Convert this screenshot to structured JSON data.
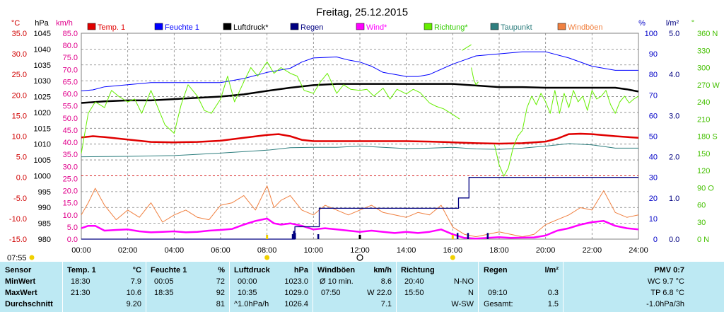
{
  "chart_data": {
    "type": "line",
    "title": "Freitag, 25.12.2015",
    "x_range": [
      "00:00",
      "24:00"
    ],
    "x_ticks": [
      "00:00",
      "02:00",
      "04:00",
      "06:00",
      "08:00",
      "10:00",
      "12:00",
      "14:00",
      "16:00",
      "18:00",
      "20:00",
      "22:00",
      "24:00"
    ],
    "start_label": "07:55",
    "axes": {
      "temp": {
        "unit": "°C",
        "range": [
          -15,
          35
        ],
        "ticks": [
          "35.0",
          "30.0",
          "25.0",
          "20.0",
          "15.0",
          "10.0",
          "5.0",
          "0.0",
          "-5.0",
          "-10.0",
          "-15.0"
        ],
        "color": "#d00000"
      },
      "pressure": {
        "unit": "hPa",
        "range": [
          980,
          1045
        ],
        "ticks": [
          "1045",
          "1040",
          "1035",
          "1030",
          "1025",
          "1020",
          "1015",
          "1010",
          "1005",
          "1000",
          "995",
          "990",
          "985",
          "980"
        ],
        "color": "#000000"
      },
      "wind": {
        "unit": "km/h",
        "range": [
          0,
          85
        ],
        "ticks": [
          "85.0",
          "80.0",
          "75.0",
          "70.0",
          "65.0",
          "60.0",
          "55.0",
          "50.0",
          "45.0",
          "40.0",
          "35.0",
          "30.0",
          "25.0",
          "20.0",
          "15.0",
          "10.0",
          "5.0",
          "0.0"
        ],
        "color": "#e0008c"
      },
      "humidity": {
        "unit": "%",
        "range": [
          0,
          100
        ],
        "ticks": [
          "100",
          "90",
          "80",
          "70",
          "60",
          "50",
          "40",
          "30",
          "20",
          "10",
          "0"
        ],
        "color": "#0000c8"
      },
      "rain": {
        "unit": "l/m²",
        "range": [
          0,
          5
        ],
        "ticks": [
          "5.0",
          "4.0",
          "3.0",
          "2.0",
          "1.0",
          "0.0"
        ],
        "color": "#000080"
      },
      "direction": {
        "unit": "°",
        "range": [
          0,
          360
        ],
        "ticks": [
          "360 N",
          "330",
          "300",
          "270 W",
          "240",
          "210",
          "180 S",
          "150",
          "120",
          "90 O",
          "60",
          "30",
          "0 N"
        ],
        "color": "#44c000"
      }
    },
    "legend": [
      {
        "name": "Temp. 1",
        "color": "#e00000"
      },
      {
        "name": "Feuchte 1",
        "color": "#0000ff"
      },
      {
        "name": "Luftdruck*",
        "color": "#000000"
      },
      {
        "name": "Regen",
        "color": "#000080"
      },
      {
        "name": "Wind*",
        "color": "#ff00ff"
      },
      {
        "name": "Richtung*",
        "color": "#66ee00"
      },
      {
        "name": "Taupunkt",
        "color": "#2f7f7f"
      },
      {
        "name": "Windböen",
        "color": "#f08040"
      }
    ],
    "series": [
      {
        "name": "Temp. 1",
        "axis": "temp",
        "color": "#e00000",
        "x": [
          0,
          0.5,
          1,
          2,
          3,
          4,
          5,
          6,
          7,
          8,
          8.5,
          9,
          9.5,
          10,
          11,
          12,
          13,
          14,
          15,
          16,
          17,
          18,
          19,
          20,
          20.5,
          21,
          21.5,
          22,
          23,
          24
        ],
        "y": [
          9.7,
          10.0,
          9.8,
          9.2,
          8.6,
          8.5,
          8.6,
          8.9,
          9.6,
          10.3,
          10.5,
          10.0,
          9.1,
          8.8,
          8.8,
          8.8,
          8.8,
          8.8,
          8.7,
          8.5,
          8.3,
          8.2,
          8.3,
          8.7,
          9.4,
          10.5,
          10.6,
          10.5,
          10.0,
          9.6
        ]
      },
      {
        "name": "Feuchte 1",
        "axis": "humidity",
        "color": "#0000ff",
        "x": [
          0,
          0.5,
          1,
          2,
          3,
          4,
          5,
          6,
          7,
          8,
          9,
          9.5,
          10,
          11,
          11.5,
          12,
          12.5,
          13,
          14,
          14.5,
          15,
          16,
          16.5,
          17,
          18,
          19,
          20,
          21,
          22,
          23,
          23.5,
          24
        ],
        "y": [
          72,
          72.5,
          74,
          75,
          76,
          76,
          76,
          76,
          78,
          81,
          83,
          86,
          88,
          88.5,
          87,
          86,
          84,
          81,
          79,
          79,
          80,
          85,
          87,
          89,
          90,
          91,
          91,
          88,
          84,
          82,
          82,
          82
        ]
      },
      {
        "name": "Luftdruck*",
        "axis": "pressure",
        "color": "#000000",
        "x": [
          0,
          1,
          2,
          3,
          4,
          5,
          6,
          7,
          8,
          9,
          10,
          11,
          12,
          13,
          14,
          15,
          16,
          17,
          18,
          19,
          20,
          21,
          22,
          23,
          23.5,
          24
        ],
        "y": [
          1023.0,
          1023.5,
          1023.8,
          1023.8,
          1024.2,
          1024.6,
          1025.0,
          1025.7,
          1026.8,
          1027.8,
          1028.6,
          1029.0,
          1029.0,
          1029.0,
          1029.0,
          1029.0,
          1029.0,
          1028.5,
          1028.0,
          1028.0,
          1027.8,
          1027.8,
          1027.8,
          1027.8,
          1027.3,
          1026.6
        ]
      },
      {
        "name": "Taupunkt",
        "axis": "temp",
        "color": "#2f7f7f",
        "x": [
          0,
          2,
          4,
          6,
          8,
          9,
          10,
          11,
          12,
          13,
          14,
          15,
          16,
          17,
          18,
          19,
          20,
          21,
          22,
          23,
          24
        ],
        "y": [
          5.0,
          5.1,
          5.3,
          5.9,
          6.6,
          7.2,
          7.3,
          7.3,
          7.6,
          7.3,
          7.0,
          7.1,
          7.3,
          6.9,
          6.8,
          7.1,
          7.6,
          8.2,
          7.9,
          7.1,
          7.1
        ]
      },
      {
        "name": "Regen",
        "axis": "rain",
        "color": "#000080",
        "x": [
          0,
          9.15,
          9.2,
          10.2,
          10.25,
          16.2,
          16.25,
          16.65,
          16.7,
          17.5,
          17.55,
          24
        ],
        "y": [
          0,
          0,
          0.3,
          0.3,
          0.75,
          0.75,
          1.0,
          1.0,
          1.5,
          1.5,
          1.5,
          1.5
        ]
      },
      {
        "name": "Wind*",
        "axis": "wind",
        "color": "#ff00ff",
        "x": [
          0,
          0.3,
          0.6,
          1,
          1.5,
          2,
          2.5,
          3,
          3.5,
          4,
          4.5,
          5,
          5.5,
          6,
          6.5,
          7,
          7.5,
          8,
          8.3,
          8.6,
          9,
          9.5,
          10,
          10.5,
          11,
          11.5,
          12,
          12.5,
          13,
          13.5,
          14,
          14.5,
          15,
          15.5,
          16,
          16.5,
          17,
          17.5,
          18,
          18.5,
          19,
          19.5,
          20,
          20.5,
          21,
          21.5,
          22,
          22.5,
          23,
          23.5,
          24
        ],
        "y": [
          4.5,
          5.5,
          5.5,
          3.5,
          3.8,
          4.0,
          3.2,
          2.8,
          3.0,
          3.2,
          2.8,
          3.0,
          3.5,
          3.8,
          4.2,
          6.0,
          7.5,
          8.5,
          6.5,
          6.0,
          6.5,
          5.5,
          4.0,
          4.5,
          4.0,
          3.5,
          3.0,
          3.5,
          3.0,
          2.5,
          3.0,
          2.5,
          3.0,
          4.0,
          2.0,
          0.5,
          0.2,
          0.5,
          0.8,
          0.5,
          0.6,
          0.7,
          1.5,
          3.5,
          4.5,
          6.0,
          7.0,
          7.5,
          5.5,
          4.5,
          4.0
        ]
      },
      {
        "name": "Windböen",
        "axis": "wind",
        "color": "#f08040",
        "x": [
          0,
          0.3,
          0.6,
          1,
          1.5,
          2,
          2.5,
          3,
          3.5,
          4,
          4.5,
          5,
          5.5,
          6,
          6.5,
          7,
          7.5,
          8,
          8.3,
          8.6,
          9,
          9.5,
          10,
          10.5,
          11,
          11.5,
          12,
          12.5,
          13,
          13.5,
          14,
          14.5,
          15,
          15.5,
          16,
          16.5,
          17,
          17.5,
          18,
          18.5,
          19,
          19.5,
          20,
          20.5,
          21,
          21.5,
          22,
          22.5,
          23,
          23.5,
          24
        ],
        "y": [
          10,
          15,
          21,
          14,
          8,
          12,
          9,
          15,
          7,
          10,
          12,
          9,
          8,
          14,
          15,
          18,
          12,
          22,
          13,
          16,
          18,
          12,
          10,
          14,
          12,
          10,
          12,
          14,
          11,
          10,
          9,
          11,
          10,
          14,
          5,
          2,
          1,
          2,
          3,
          2,
          1,
          2,
          6,
          8,
          10,
          13,
          12,
          20,
          11,
          9,
          10
        ]
      },
      {
        "name": "Richtung*",
        "axis": "direction",
        "color": "#66ee00",
        "x": [
          0,
          0.3,
          0.6,
          1,
          1.3,
          1.6,
          2,
          2.3,
          2.6,
          3,
          3.3,
          3.6,
          4,
          4.3,
          4.6,
          5,
          5.3,
          5.6,
          6,
          6.3,
          6.6,
          7,
          7.3,
          7.6,
          8,
          8.3,
          8.6,
          9,
          9.3,
          9.6,
          10,
          10.3,
          10.6,
          11,
          11.3,
          11.6,
          12,
          12.3,
          12.6,
          13,
          13.3,
          13.6,
          14,
          14.3,
          14.6,
          15,
          15.3,
          15.6,
          16,
          16.3
        ],
        "y": [
          150,
          220,
          240,
          230,
          260,
          250,
          240,
          245,
          220,
          260,
          230,
          200,
          185,
          235,
          270,
          250,
          225,
          220,
          245,
          285,
          240,
          275,
          300,
          285,
          310,
          290,
          300,
          290,
          285,
          260,
          255,
          275,
          290,
          255,
          270,
          262,
          260,
          262,
          250,
          264,
          245,
          262,
          254,
          262,
          256,
          238,
          232,
          228,
          218,
          210
        ]
      },
      {
        "name": "Richtung*",
        "axis": "direction",
        "color": "#66ee00",
        "x": [
          16.4,
          16.6,
          16.8
        ],
        "y": [
          330,
          335,
          340
        ]
      },
      {
        "name": "Richtung*",
        "axis": "direction",
        "color": "#66ee00",
        "x": [
          16.8,
          16.9,
          17,
          17.1
        ],
        "y": [
          300,
          280,
          270,
          275
        ]
      },
      {
        "name": "Richtung*",
        "axis": "direction",
        "color": "#66ee00",
        "x": [
          17.8,
          18,
          18.2,
          18.4,
          18.6,
          18.8,
          19,
          19.2,
          19.4,
          19.6,
          19.8,
          20,
          20.2,
          20.4,
          20.6,
          20.8,
          21,
          21.2,
          21.4,
          21.6,
          21.8,
          22,
          22.2,
          22.4,
          22.6,
          22.8,
          23,
          23.2,
          23.4,
          23.6,
          23.8,
          24
        ],
        "y": [
          165,
          130,
          110,
          125,
          160,
          180,
          190,
          230,
          250,
          235,
          255,
          240,
          220,
          260,
          220,
          255,
          230,
          260,
          240,
          250,
          225,
          260,
          245,
          250,
          260,
          235,
          220,
          240,
          250,
          238,
          245,
          250
        ]
      }
    ],
    "rain_bars": {
      "axis": "rain",
      "color": "#000080",
      "x": [
        9.1,
        9.15,
        9.2,
        10.2,
        16.2,
        16.65,
        17.5
      ],
      "y": [
        0.12,
        0.2,
        0.15,
        0.12,
        0.15,
        0.15,
        0.15
      ]
    },
    "markers": {
      "yellow": [
        "08:00",
        "16:00"
      ],
      "noon": "12:00"
    }
  },
  "stats": {
    "headers": [
      "Sensor",
      "Temp. 1",
      "°C",
      "Feuchte 1",
      "%",
      "Luftdruck",
      "hPa",
      "Windböen",
      "km/h",
      "Richtung",
      "Regen",
      "l/m²",
      "PMV 0:7"
    ],
    "rows": [
      "MinWert",
      "MaxWert",
      "Durchschnitt"
    ],
    "temp": {
      "min_time": "18:30",
      "min": "7.9",
      "max_time": "21:30",
      "max": "10.6",
      "avg": "9.20"
    },
    "humidity": {
      "min_time": "00:05",
      "min": "72",
      "max_time": "18:35",
      "max": "92",
      "avg": "81"
    },
    "pressure": {
      "min_time": "00:00",
      "min": "1023.0",
      "max_time": "10:35",
      "max": "1029.0",
      "avg_label": "^1.0hPa/h",
      "avg": "1026.4"
    },
    "gusts": {
      "min_label": "Ø 10 min.",
      "min": "8.6",
      "max_time": "07:50",
      "max": "W 22.0",
      "avg": "7.1"
    },
    "direction": {
      "min_time": "20:40",
      "min": "N-NO",
      "max_time": "15:50",
      "max": "N",
      "avg": "W-SW"
    },
    "rain": {
      "max_time": "09:10",
      "max": "0.3",
      "total_label": "Gesamt:",
      "total": "1.5"
    },
    "pmv": {
      "wc": "WC 9.7 °C",
      "tp": "TP 6.8 °C",
      "trend": "-1.0hPa/3h"
    }
  }
}
